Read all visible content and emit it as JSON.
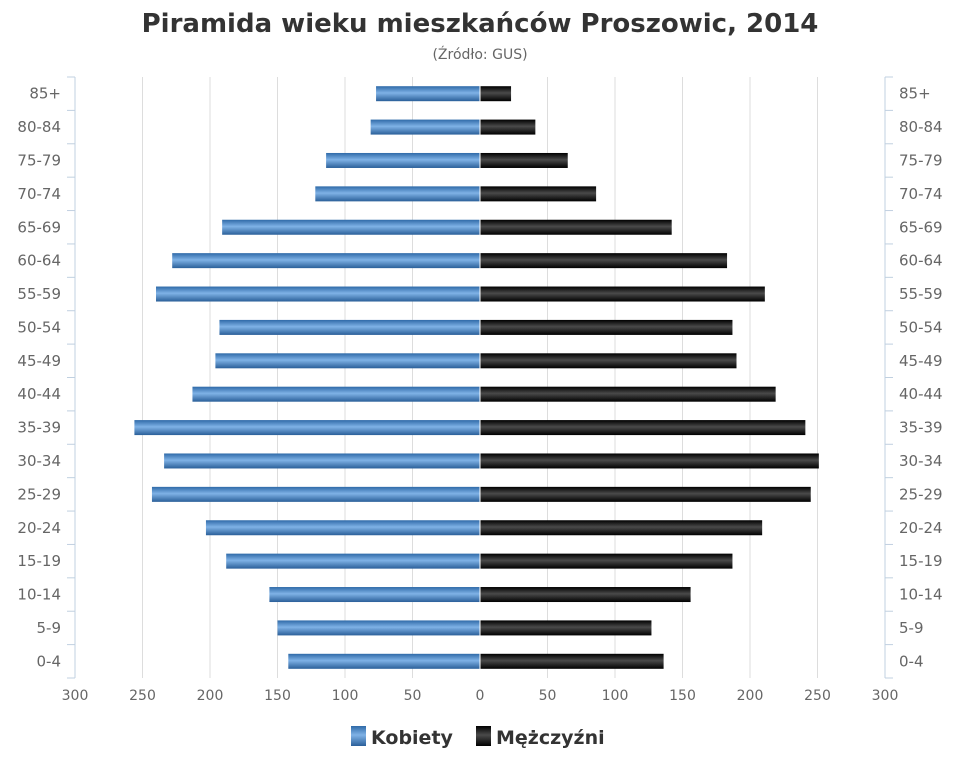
{
  "chart_data": {
    "type": "bar",
    "orientation": "horizontal",
    "title": "Piramida wieku mieszkańców Proszowic, 2014",
    "subtitle": "(Źródło: GUS)",
    "categories": [
      "85+",
      "80-84",
      "75-79",
      "70-74",
      "65-69",
      "60-64",
      "55-59",
      "50-54",
      "45-49",
      "40-44",
      "35-39",
      "30-34",
      "25-29",
      "20-24",
      "15-19",
      "10-14",
      "5-9",
      "0-4"
    ],
    "series": [
      {
        "name": "Kobiety",
        "color": "#4a86c8",
        "values": [
          77,
          81,
          114,
          122,
          191,
          228,
          240,
          193,
          196,
          213,
          256,
          234,
          243,
          203,
          188,
          156,
          150,
          142
        ]
      },
      {
        "name": "Mężczyźni",
        "color": "#1a1a1a",
        "values": [
          23,
          41,
          65,
          86,
          142,
          183,
          211,
          187,
          190,
          219,
          241,
          251,
          245,
          209,
          187,
          156,
          127,
          136
        ]
      }
    ],
    "x_ticks": [
      "300",
      "250",
      "200",
      "150",
      "100",
      "50",
      "0",
      "50",
      "100",
      "150",
      "200",
      "250",
      "300"
    ],
    "xlim": [
      -300,
      300
    ],
    "grid": true,
    "legend_position": "bottom"
  }
}
